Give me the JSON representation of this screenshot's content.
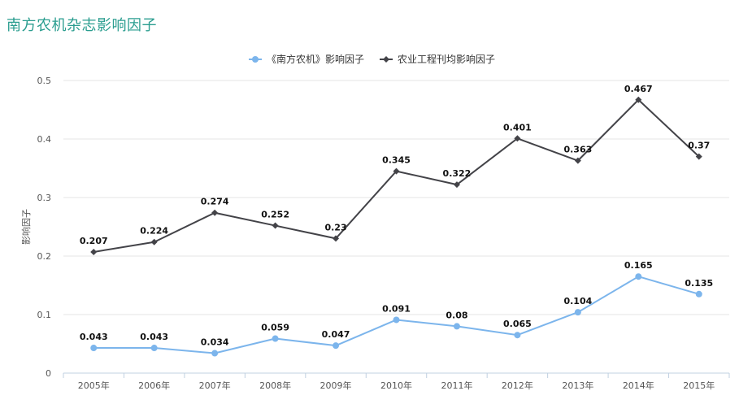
{
  "header": {
    "title": "南方农机杂志影响因子"
  },
  "chart_data": {
    "type": "line",
    "title": "",
    "xlabel": "",
    "ylabel": "影响因子",
    "ylim": [
      0,
      0.5
    ],
    "yticks": [
      "0",
      "0.1",
      "0.2",
      "0.3",
      "0.4",
      "0.5"
    ],
    "ytick_values": [
      0,
      0.1,
      0.2,
      0.3,
      0.4,
      0.5
    ],
    "categories": [
      "2005年",
      "2006年",
      "2007年",
      "2008年",
      "2009年",
      "2010年",
      "2011年",
      "2012年",
      "2013年",
      "2014年",
      "2015年"
    ],
    "grid": true,
    "legend_position": "top-center",
    "series": [
      {
        "name": "《南方农机》影响因子",
        "color": "#7cb5ec",
        "marker": "circle",
        "values": [
          0.043,
          0.043,
          0.034,
          0.059,
          0.047,
          0.091,
          0.08,
          0.065,
          0.104,
          0.165,
          0.135
        ],
        "labels": [
          "0.043",
          "0.043",
          "0.034",
          "0.059",
          "0.047",
          "0.091",
          "0.08",
          "0.065",
          "0.104",
          "0.165",
          "0.135"
        ]
      },
      {
        "name": "农业工程刊均影响因子",
        "color": "#434348",
        "marker": "diamond",
        "values": [
          0.207,
          0.224,
          0.274,
          0.252,
          0.23,
          0.345,
          0.322,
          0.401,
          0.363,
          0.467,
          0.37
        ],
        "labels": [
          "0.207",
          "0.224",
          "0.274",
          "0.252",
          "0.23",
          "0.345",
          "0.322",
          "0.401",
          "0.363",
          "0.467",
          "0.37"
        ]
      }
    ]
  }
}
